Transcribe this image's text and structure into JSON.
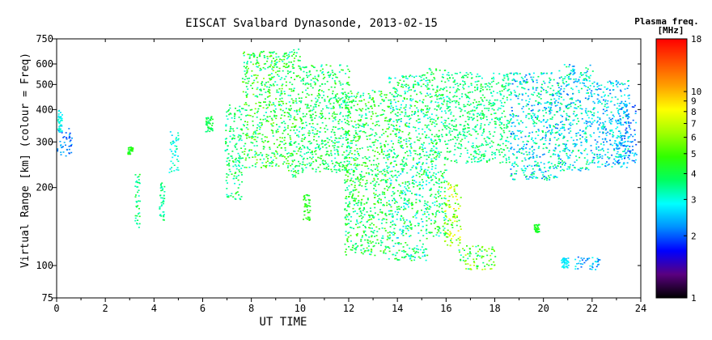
{
  "chart_data": {
    "type": "scatter",
    "title": "EISCAT Svalbard Dynasonde, 2013-02-15",
    "xlabel": "UT TIME",
    "ylabel": "Virtual Range [km] (colour = Freq)",
    "x_ticks": [
      0,
      2,
      4,
      6,
      8,
      10,
      12,
      14,
      16,
      18,
      20,
      22,
      24
    ],
    "y_ticks": [
      75,
      100,
      200,
      300,
      400,
      500,
      600,
      750
    ],
    "xlim": [
      0,
      24
    ],
    "ylim": [
      75,
      750
    ],
    "y_scale": "log",
    "colorbar": {
      "title": "Plasma freq.",
      "unit": "[MHz]",
      "ticks": [
        1,
        2,
        3,
        4,
        5,
        6,
        7,
        8,
        9,
        10,
        18
      ],
      "range": [
        1,
        18
      ],
      "scale": "log",
      "colors": [
        "#000000",
        "#5a0080",
        "#0000ff",
        "#0090ff",
        "#00ffff",
        "#00ff60",
        "#30ff00",
        "#a0ff00",
        "#ffff00",
        "#ffa000",
        "#ff5000",
        "#ff0000"
      ]
    },
    "clusters": [
      {
        "x": [
          0.0,
          0.6
        ],
        "y": [
          260,
          340
        ],
        "freq": [
          1.8,
          2.6
        ]
      },
      {
        "x": [
          0.0,
          0.2
        ],
        "y": [
          330,
          400
        ],
        "freq": [
          2.5,
          3.2
        ]
      },
      {
        "x": [
          2.9,
          3.1
        ],
        "y": [
          270,
          290
        ],
        "freq": [
          4.0,
          5.0
        ]
      },
      {
        "x": [
          3.2,
          3.4
        ],
        "y": [
          140,
          230
        ],
        "freq": [
          3.0,
          4.5
        ]
      },
      {
        "x": [
          4.2,
          4.4
        ],
        "y": [
          150,
          210
        ],
        "freq": [
          3.0,
          4.0
        ]
      },
      {
        "x": [
          4.6,
          5.0
        ],
        "y": [
          230,
          340
        ],
        "freq": [
          2.5,
          3.5
        ]
      },
      {
        "x": [
          6.1,
          6.4
        ],
        "y": [
          330,
          380
        ],
        "freq": [
          3.5,
          4.5
        ]
      },
      {
        "x": [
          6.9,
          7.6
        ],
        "y": [
          180,
          420
        ],
        "freq": [
          3.0,
          4.5
        ]
      },
      {
        "x": [
          7.6,
          9.2
        ],
        "y": [
          240,
          680
        ],
        "freq": [
          3.0,
          6.0
        ]
      },
      {
        "x": [
          9.2,
          10.0
        ],
        "y": [
          220,
          690
        ],
        "freq": [
          3.0,
          5.5
        ]
      },
      {
        "x": [
          10.0,
          12.0
        ],
        "y": [
          230,
          600
        ],
        "freq": [
          3.0,
          5.0
        ]
      },
      {
        "x": [
          10.1,
          10.4
        ],
        "y": [
          150,
          190
        ],
        "freq": [
          4.0,
          5.0
        ]
      },
      {
        "x": [
          11.8,
          13.6
        ],
        "y": [
          110,
          480
        ],
        "freq": [
          3.0,
          5.5
        ]
      },
      {
        "x": [
          13.6,
          15.2
        ],
        "y": [
          105,
          550
        ],
        "freq": [
          2.5,
          5.0
        ]
      },
      {
        "x": [
          15.2,
          16.0
        ],
        "y": [
          130,
          590
        ],
        "freq": [
          2.8,
          5.0
        ]
      },
      {
        "x": [
          15.9,
          16.6
        ],
        "y": [
          120,
          210
        ],
        "freq": [
          4.0,
          9.0
        ]
      },
      {
        "x": [
          16.5,
          18.0
        ],
        "y": [
          97,
          120
        ],
        "freq": [
          3.0,
          7.0
        ]
      },
      {
        "x": [
          16.0,
          18.6
        ],
        "y": [
          250,
          560
        ],
        "freq": [
          3.0,
          4.5
        ]
      },
      {
        "x": [
          18.6,
          20.6
        ],
        "y": [
          215,
          560
        ],
        "freq": [
          2.0,
          4.0
        ]
      },
      {
        "x": [
          19.6,
          19.8
        ],
        "y": [
          135,
          145
        ],
        "freq": [
          4.0,
          5.0
        ]
      },
      {
        "x": [
          20.6,
          22.0
        ],
        "y": [
          230,
          600
        ],
        "freq": [
          2.0,
          4.0
        ]
      },
      {
        "x": [
          20.7,
          21.0
        ],
        "y": [
          98,
          108
        ],
        "freq": [
          2.5,
          3.0
        ]
      },
      {
        "x": [
          21.2,
          22.3
        ],
        "y": [
          97,
          110
        ],
        "freq": [
          2.0,
          3.0
        ]
      },
      {
        "x": [
          22.0,
          23.5
        ],
        "y": [
          240,
          520
        ],
        "freq": [
          2.0,
          3.5
        ]
      },
      {
        "x": [
          23.0,
          23.8
        ],
        "y": [
          250,
          430
        ],
        "freq": [
          1.8,
          2.8
        ]
      }
    ]
  }
}
